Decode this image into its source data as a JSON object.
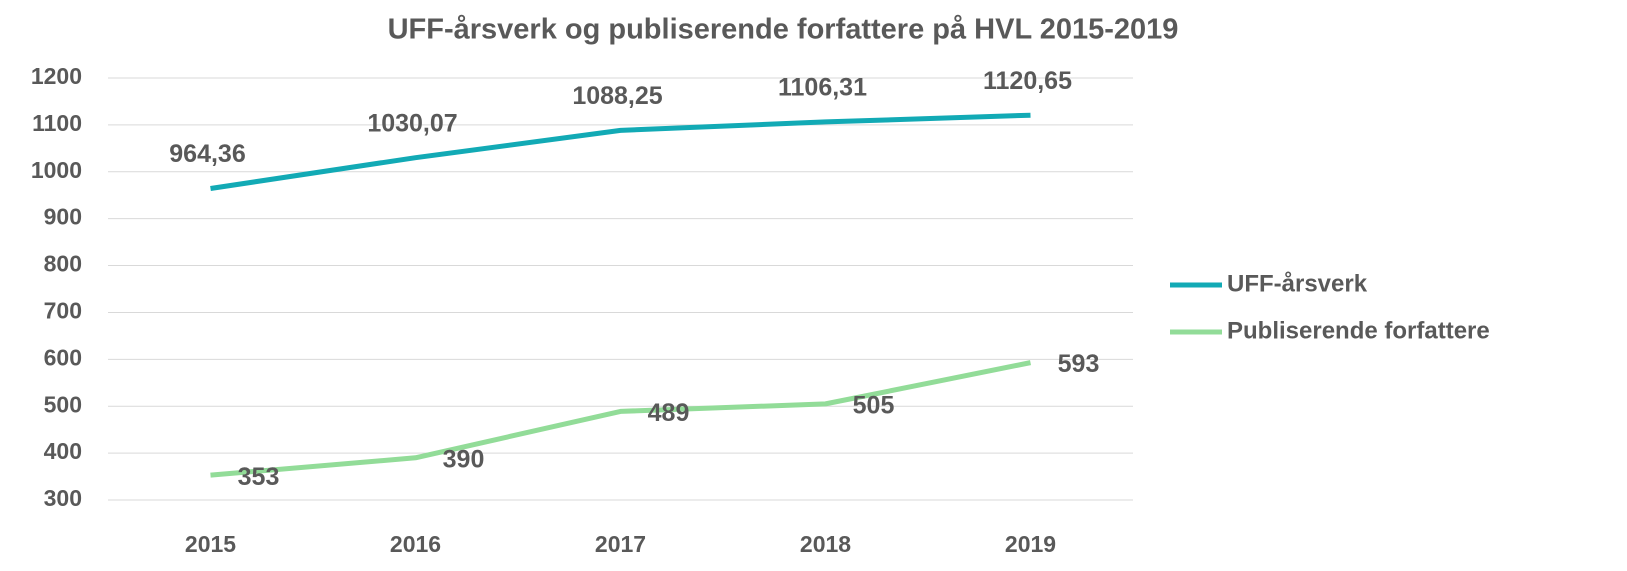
{
  "chart_data": {
    "type": "line",
    "title": "UFF-årsverk og publiserende forfattere på HVL 2015-2019",
    "categories": [
      "2015",
      "2016",
      "2017",
      "2018",
      "2019"
    ],
    "series": [
      {
        "name": "UFF-årsverk",
        "color": "#12aab5",
        "values": [
          964.36,
          1030.07,
          1088.25,
          1106.31,
          1120.65
        ],
        "value_labels": [
          "964,36",
          "1030,07",
          "1088,25",
          "1106,31",
          "1120,65"
        ]
      },
      {
        "name": "Publiserende forfattere",
        "color": "#92dc98",
        "values": [
          353,
          390,
          489,
          505,
          593
        ]
      }
    ],
    "ylim": [
      300,
      1200
    ],
    "yticks": [
      300,
      400,
      500,
      600,
      700,
      800,
      900,
      1000,
      1100,
      1200
    ],
    "grid": true,
    "legend": "right"
  }
}
